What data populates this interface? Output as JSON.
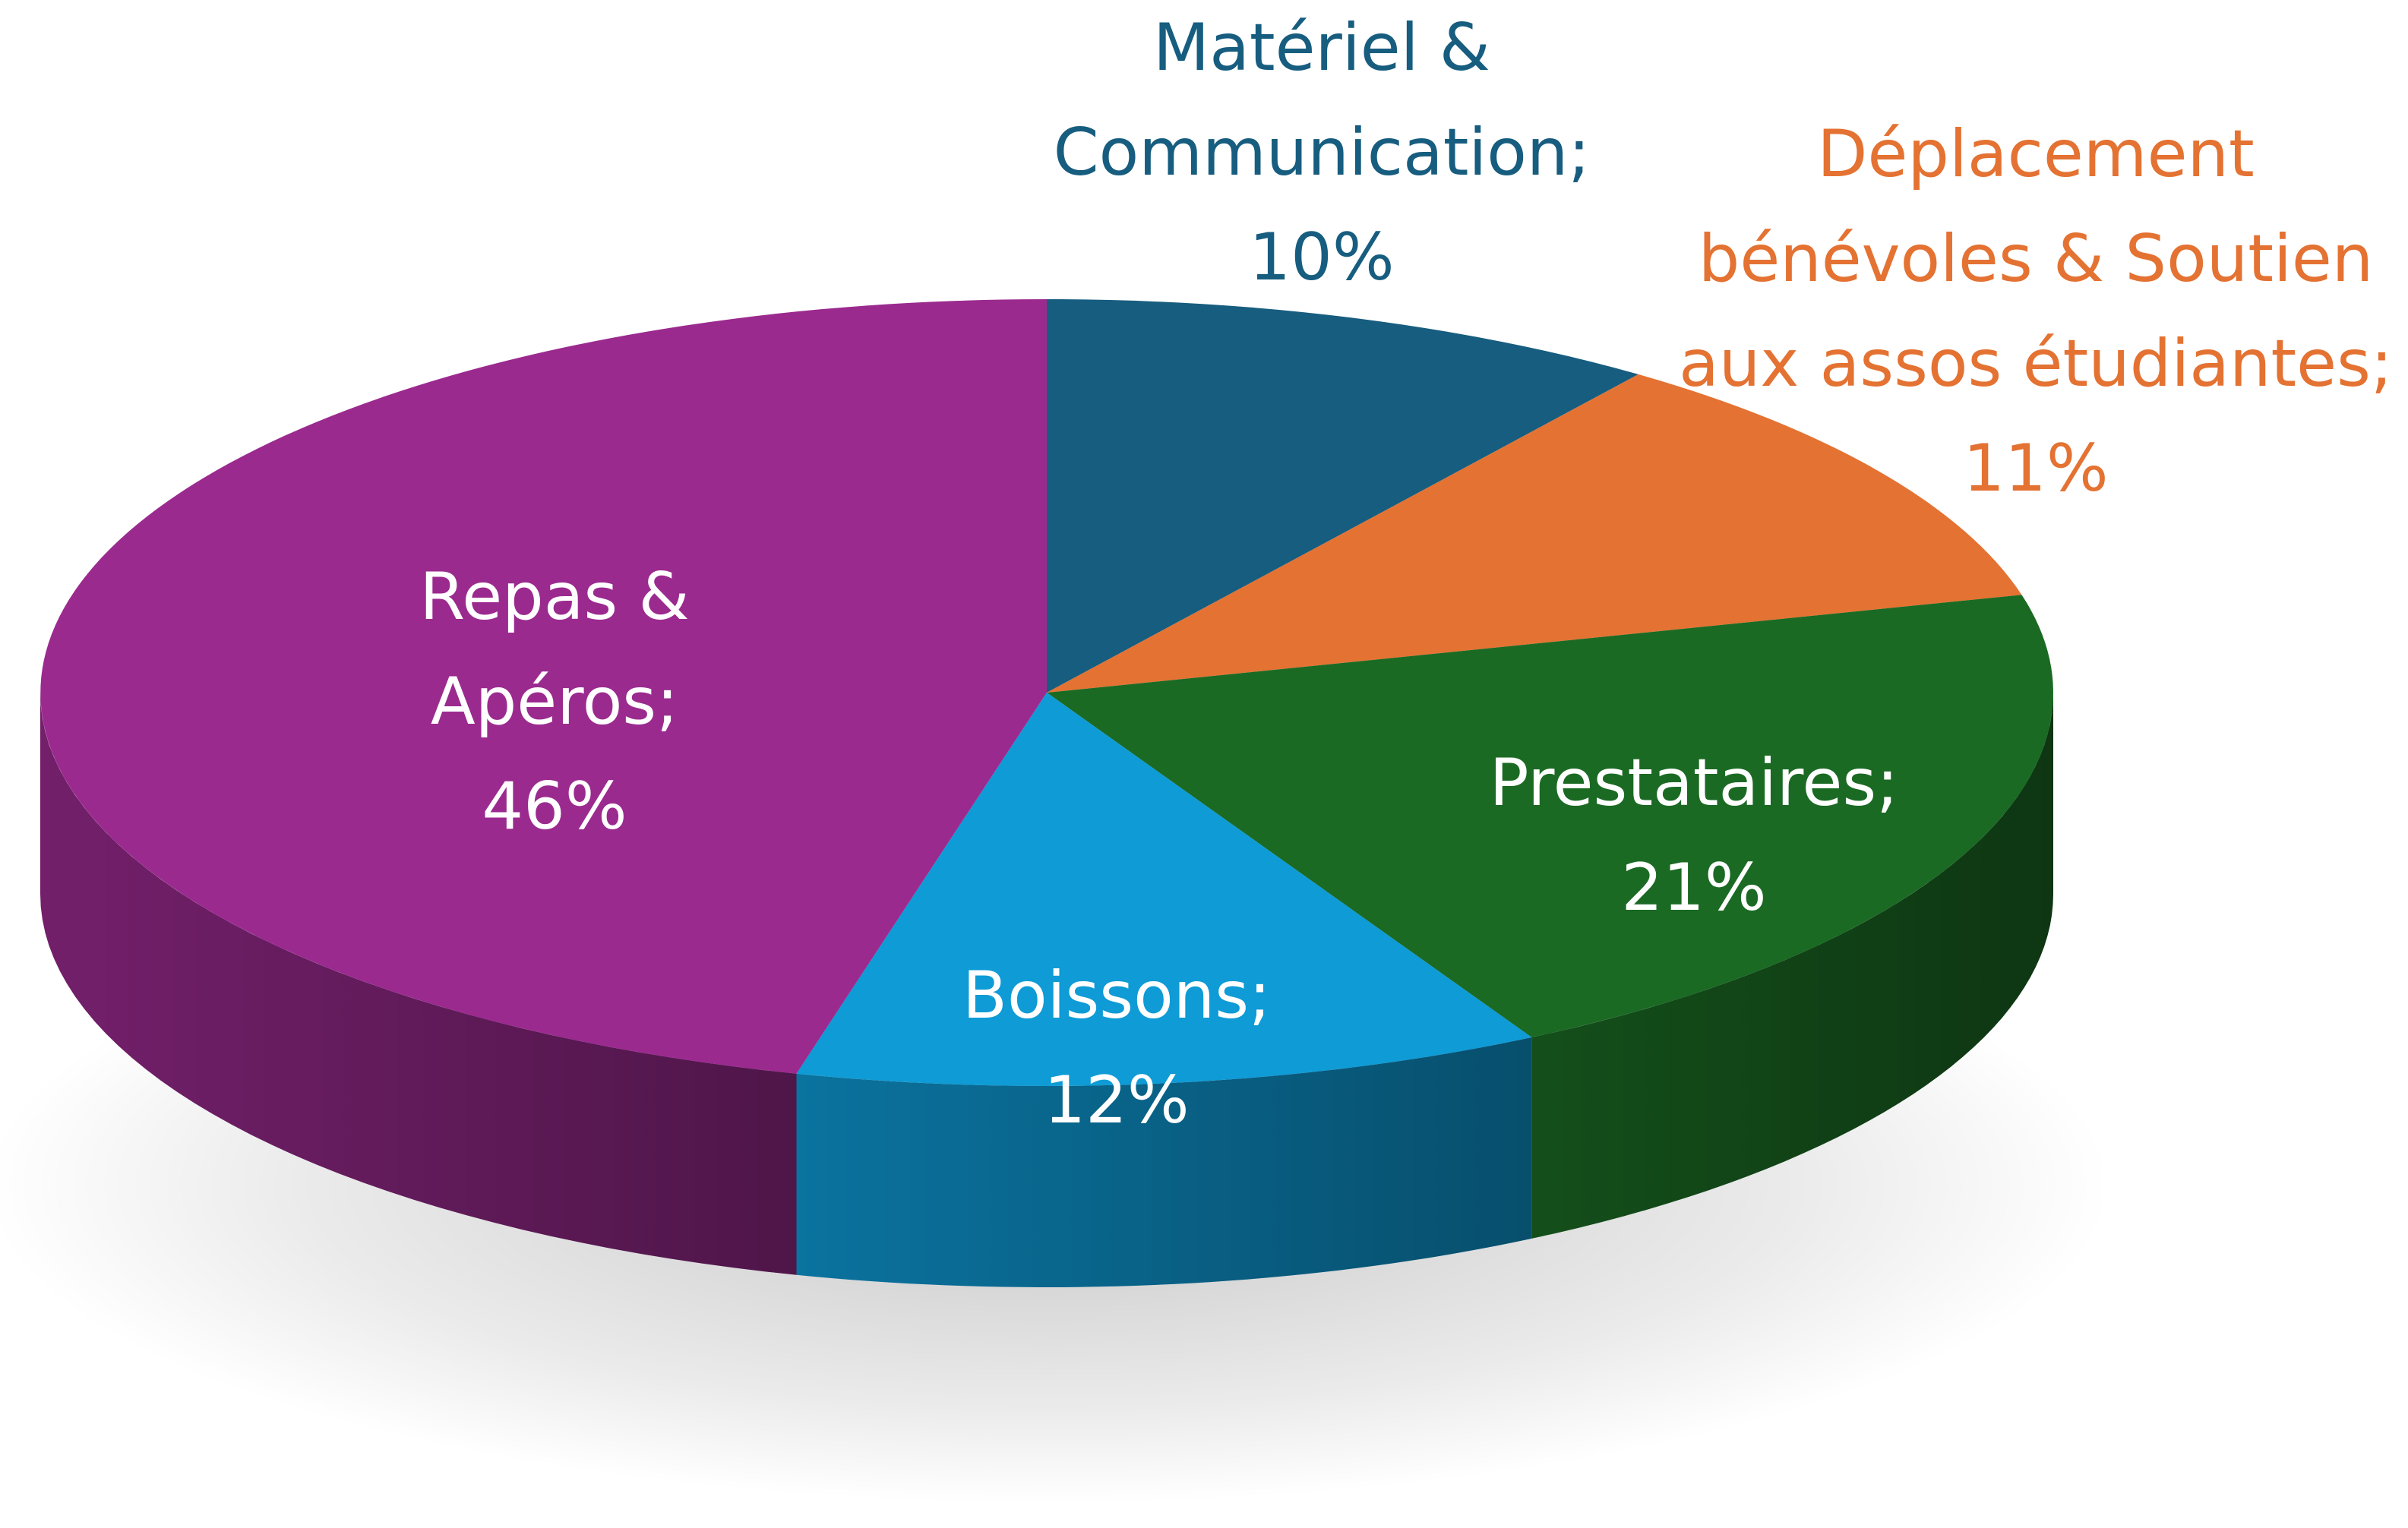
{
  "chart_data": {
    "type": "pie",
    "title": "",
    "slices": [
      {
        "name": "Matériel & Communication",
        "value": 10,
        "label_lines": [
          "Matériel &",
          "Communication;",
          "10%"
        ],
        "color": "#175d7f",
        "label_color": "#175d7f"
      },
      {
        "name": "Déplacement bénévoles & Soutien aux assos étudiantes",
        "value": 11,
        "label_lines": [
          "Déplacement",
          "bénévoles & Soutien",
          "aux assos étudiantes;",
          "11%"
        ],
        "color": "#e47232",
        "label_color": "#e47232"
      },
      {
        "name": "Prestataires",
        "value": 21,
        "label_lines": [
          "Prestataires;",
          "21%"
        ],
        "color": "#1b6a24",
        "label_color": "#ffffff"
      },
      {
        "name": "Boissons",
        "value": 12,
        "label_lines": [
          "Boissons;",
          "12%"
        ],
        "color": "#0e9bd6",
        "label_color": "#ffffff"
      },
      {
        "name": "Repas & Apéros",
        "value": 46,
        "label_lines": [
          "Repas &",
          "Apéros;",
          "46%"
        ],
        "color": "#9b2a8f",
        "label_color": "#ffffff"
      }
    ],
    "view": "3d-tilted",
    "legend": "none"
  }
}
